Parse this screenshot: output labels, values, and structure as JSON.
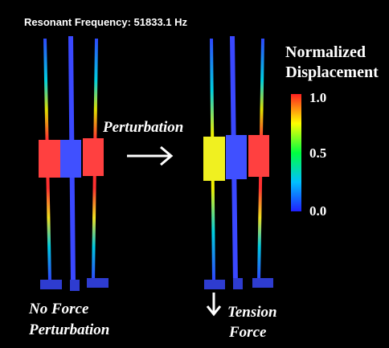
{
  "header": {
    "title": "Resonant Frequency: 51833.1 Hz"
  },
  "colorbar": {
    "title": [
      "Normalized",
      "Displacement"
    ],
    "ticks": [
      "1.0",
      "0.5",
      "0.0"
    ]
  },
  "labels": {
    "perturbation": "Perturbation",
    "left_caption": [
      "No Force",
      "Perturbation"
    ],
    "right_caption": [
      "Tension",
      "Force"
    ]
  }
}
